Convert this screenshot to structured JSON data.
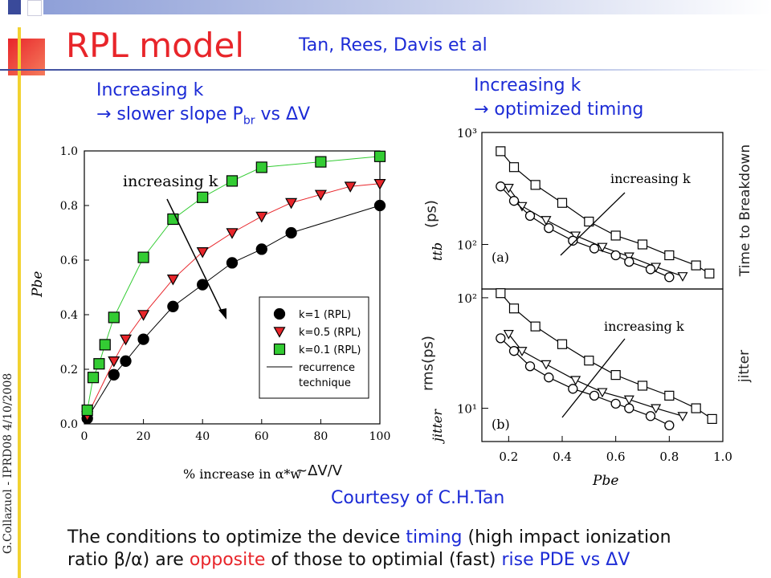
{
  "slide": {
    "title": "RPL model",
    "authors": "Tan, Rees, Davis et al",
    "note_left_line1": "Increasing k",
    "note_left_line2_prefix": "→ slower slope P",
    "note_left_line2_sub": "br",
    "note_left_line2_suffix": " vs ΔV",
    "note_right_line1": "Increasing k",
    "note_right_line2": "→ optimized timing",
    "courtesy": "Courtesy of C.H.Tan",
    "xlabel_extra": "~ΔV/V",
    "ylabel_top_extra": "(ps)",
    "ylabel_bottom_extra": "rms(ps)",
    "side_label_top": "Time to Breakdown",
    "side_label_bottom": "jitter",
    "footer_vertical": "G.Collazuol - IPRD08  4/10/2008",
    "bottom_line1_part1": "The conditions to optimize the device ",
    "bottom_line1_part2": "timing",
    "bottom_line1_part3": " (high impact ionization",
    "bottom_line2_part1": "ratio β/α) are ",
    "bottom_line2_part2": "opposite",
    "bottom_line2_part3": " of those to optimial (fast) ",
    "bottom_line2_part4": "rise PDE vs ΔV",
    "colors": {
      "title": "#e8252a",
      "accent_blue": "#1c2bd6",
      "k1": "#000000",
      "k05": "#e8252a",
      "k01": "#33cc33"
    }
  },
  "chart_data": [
    {
      "type": "scatter",
      "xlabel": "% increase in α*w",
      "ylabel": "Pbe",
      "xlim": [
        0,
        100
      ],
      "ylim": [
        0.0,
        1.0
      ],
      "xticks": [
        "0",
        "20",
        "40",
        "60",
        "80",
        "100"
      ],
      "yticks": [
        "0.0",
        "0.2",
        "0.4",
        "0.6",
        "0.8",
        "1.0"
      ],
      "annotation": "increasing k",
      "legend_position": "bottom-right",
      "series": [
        {
          "name": "k=1 (RPL)",
          "marker": "circle",
          "x": [
            1,
            10,
            14,
            20,
            30,
            40,
            50,
            60,
            70,
            100
          ],
          "y": [
            0.02,
            0.18,
            0.23,
            0.31,
            0.43,
            0.51,
            0.59,
            0.64,
            0.7,
            0.8
          ]
        },
        {
          "name": "k=0.5 (RPL)",
          "marker": "triangle-down",
          "x": [
            1,
            10,
            14,
            20,
            30,
            40,
            50,
            60,
            70,
            80,
            90,
            100
          ],
          "y": [
            0.03,
            0.23,
            0.31,
            0.4,
            0.53,
            0.63,
            0.7,
            0.76,
            0.81,
            0.84,
            0.87,
            0.88
          ]
        },
        {
          "name": "k=0.1 (RPL)",
          "marker": "square",
          "x": [
            1,
            3,
            5,
            7,
            10,
            20,
            30,
            40,
            50,
            60,
            80,
            100
          ],
          "y": [
            0.05,
            0.17,
            0.22,
            0.29,
            0.39,
            0.61,
            0.75,
            0.83,
            0.89,
            0.94,
            0.96,
            0.98
          ]
        },
        {
          "name": "recurrence technique",
          "marker": "line"
        }
      ]
    },
    {
      "type": "line",
      "panel": "(a)",
      "ylabel": "ttb",
      "yscale": "log",
      "ylim": [
        40,
        1000
      ],
      "yticks": [
        "10²",
        "10³"
      ],
      "xlim": [
        0.1,
        1.0
      ],
      "annotation": "increasing k",
      "series": [
        {
          "marker": "square",
          "x": [
            0.17,
            0.22,
            0.3,
            0.4,
            0.5,
            0.6,
            0.7,
            0.8,
            0.9,
            0.95
          ],
          "y": [
            680,
            490,
            340,
            235,
            160,
            120,
            100,
            80,
            65,
            55
          ]
        },
        {
          "marker": "triangle-down",
          "x": [
            0.2,
            0.25,
            0.34,
            0.45,
            0.55,
            0.65,
            0.75,
            0.85
          ],
          "y": [
            320,
            220,
            165,
            120,
            95,
            78,
            63,
            52
          ]
        },
        {
          "marker": "circle",
          "x": [
            0.17,
            0.22,
            0.28,
            0.35,
            0.44,
            0.52,
            0.6,
            0.65,
            0.73,
            0.8
          ],
          "y": [
            330,
            245,
            180,
            140,
            108,
            92,
            80,
            70,
            60,
            51
          ]
        }
      ]
    },
    {
      "type": "line",
      "panel": "(b)",
      "ylabel": "jitter",
      "yscale": "log",
      "ylim": [
        5,
        120
      ],
      "yticks": [
        "10¹",
        "10²"
      ],
      "xlabel": "Pbe",
      "xlim": [
        0.1,
        1.0
      ],
      "xticks": [
        "0.2",
        "0.4",
        "0.6",
        "0.8",
        "1.0"
      ],
      "annotation": "increasing k",
      "series": [
        {
          "marker": "square",
          "x": [
            0.17,
            0.22,
            0.3,
            0.4,
            0.5,
            0.6,
            0.7,
            0.8,
            0.9,
            0.96
          ],
          "y": [
            110,
            80,
            55,
            38,
            27,
            20,
            16,
            13,
            10,
            8
          ]
        },
        {
          "marker": "triangle-down",
          "x": [
            0.2,
            0.25,
            0.34,
            0.45,
            0.55,
            0.65,
            0.75,
            0.85
          ],
          "y": [
            47,
            33,
            25,
            18,
            14,
            12,
            10,
            8.5
          ]
        },
        {
          "marker": "circle",
          "x": [
            0.17,
            0.22,
            0.28,
            0.35,
            0.44,
            0.52,
            0.6,
            0.65,
            0.73,
            0.8
          ],
          "y": [
            43,
            33,
            24,
            19,
            15,
            13,
            11,
            10,
            8.5,
            7
          ]
        }
      ]
    }
  ]
}
